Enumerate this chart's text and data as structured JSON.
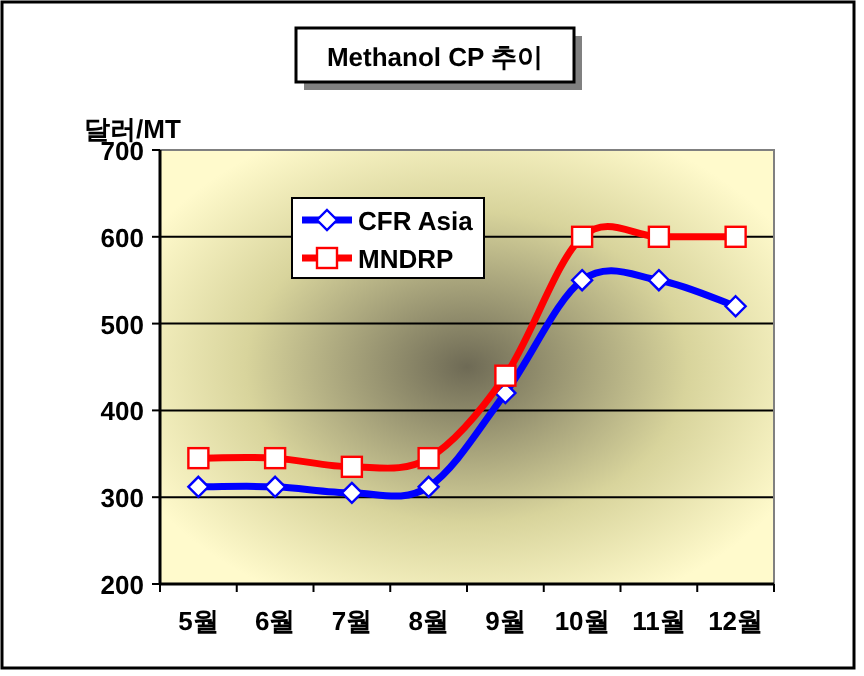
{
  "chart_data": {
    "type": "line",
    "title": "Methanol CP 추이",
    "ylabel": "달러/MT",
    "categories": [
      "5월",
      "6월",
      "7월",
      "8월",
      "9월",
      "10월",
      "11월",
      "12월"
    ],
    "series": [
      {
        "name": "CFR Asia",
        "color": "#0000ff",
        "marker": "diamond",
        "values": [
          312,
          312,
          305,
          312,
          420,
          550,
          550,
          520
        ]
      },
      {
        "name": "MNDRP",
        "color": "#ff0000",
        "marker": "square",
        "values": [
          345,
          345,
          335,
          345,
          440,
          600,
          600,
          600
        ]
      }
    ],
    "ylim": [
      200,
      700
    ],
    "yticks": [
      200,
      300,
      400,
      500,
      600,
      700
    ],
    "grid": "y",
    "legend": "top left",
    "line_style": "solid"
  }
}
